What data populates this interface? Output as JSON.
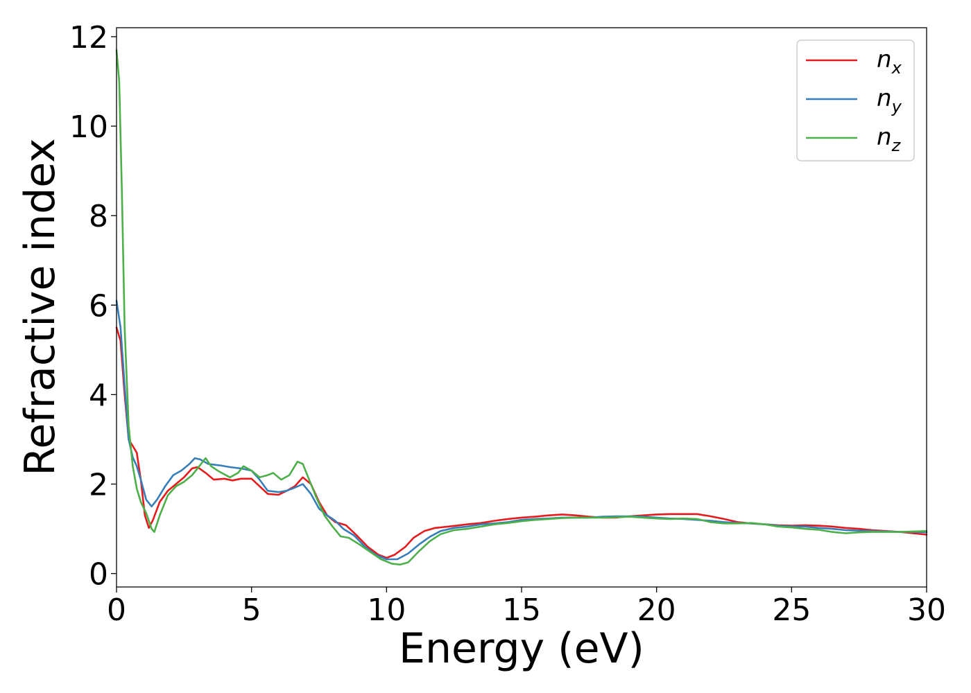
{
  "chart_data": {
    "type": "line",
    "xlabel": "Energy (eV)",
    "ylabel": "Refractive index",
    "xlim": [
      0,
      30
    ],
    "ylim": [
      -0.3,
      12.2
    ],
    "xticks": [
      "0",
      "5",
      "10",
      "15",
      "20",
      "25",
      "30"
    ],
    "yticks": [
      "0",
      "2",
      "4",
      "6",
      "8",
      "10",
      "12"
    ],
    "grid": false,
    "legend_position": "top-right",
    "series": [
      {
        "name": "n",
        "subscript": "x",
        "color": "#e41a1c",
        "points": [
          [
            0,
            5.5
          ],
          [
            0.15,
            5.2
          ],
          [
            0.3,
            4.0
          ],
          [
            0.45,
            3.0
          ],
          [
            0.6,
            2.85
          ],
          [
            0.75,
            2.7
          ],
          [
            0.9,
            2.1
          ],
          [
            1.05,
            1.3
          ],
          [
            1.2,
            1.02
          ],
          [
            1.35,
            1.2
          ],
          [
            1.6,
            1.6
          ],
          [
            1.9,
            1.85
          ],
          [
            2.2,
            2.0
          ],
          [
            2.5,
            2.15
          ],
          [
            2.8,
            2.35
          ],
          [
            3.0,
            2.38
          ],
          [
            3.3,
            2.25
          ],
          [
            3.6,
            2.1
          ],
          [
            4.0,
            2.12
          ],
          [
            4.3,
            2.08
          ],
          [
            4.6,
            2.12
          ],
          [
            5.0,
            2.12
          ],
          [
            5.3,
            1.95
          ],
          [
            5.6,
            1.78
          ],
          [
            6.0,
            1.76
          ],
          [
            6.3,
            1.85
          ],
          [
            6.6,
            1.95
          ],
          [
            6.9,
            2.15
          ],
          [
            7.2,
            2.0
          ],
          [
            7.5,
            1.6
          ],
          [
            7.8,
            1.3
          ],
          [
            8.1,
            1.15
          ],
          [
            8.5,
            1.08
          ],
          [
            8.9,
            0.85
          ],
          [
            9.3,
            0.6
          ],
          [
            9.7,
            0.42
          ],
          [
            10.0,
            0.35
          ],
          [
            10.3,
            0.42
          ],
          [
            10.7,
            0.6
          ],
          [
            11.0,
            0.8
          ],
          [
            11.4,
            0.95
          ],
          [
            11.8,
            1.02
          ],
          [
            12.3,
            1.05
          ],
          [
            13.0,
            1.1
          ],
          [
            13.5,
            1.13
          ],
          [
            14.0,
            1.18
          ],
          [
            14.5,
            1.22
          ],
          [
            15.0,
            1.25
          ],
          [
            15.5,
            1.27
          ],
          [
            16.0,
            1.3
          ],
          [
            16.5,
            1.32
          ],
          [
            17.0,
            1.3
          ],
          [
            17.5,
            1.27
          ],
          [
            18.0,
            1.25
          ],
          [
            18.5,
            1.25
          ],
          [
            19.0,
            1.28
          ],
          [
            19.5,
            1.3
          ],
          [
            20.0,
            1.32
          ],
          [
            20.5,
            1.33
          ],
          [
            21.0,
            1.33
          ],
          [
            21.5,
            1.33
          ],
          [
            22.0,
            1.28
          ],
          [
            22.5,
            1.22
          ],
          [
            23.0,
            1.15
          ],
          [
            23.5,
            1.12
          ],
          [
            24.0,
            1.1
          ],
          [
            24.5,
            1.08
          ],
          [
            25.0,
            1.07
          ],
          [
            25.5,
            1.08
          ],
          [
            26.0,
            1.07
          ],
          [
            26.5,
            1.05
          ],
          [
            27.0,
            1.02
          ],
          [
            27.5,
            1.0
          ],
          [
            28.0,
            0.97
          ],
          [
            28.5,
            0.95
          ],
          [
            29.0,
            0.93
          ],
          [
            29.5,
            0.9
          ],
          [
            30.0,
            0.87
          ]
        ]
      },
      {
        "name": "n",
        "subscript": "y",
        "color": "#377eb8",
        "points": [
          [
            0,
            6.1
          ],
          [
            0.15,
            5.5
          ],
          [
            0.3,
            4.2
          ],
          [
            0.45,
            3.0
          ],
          [
            0.6,
            2.6
          ],
          [
            0.75,
            2.4
          ],
          [
            0.9,
            2.1
          ],
          [
            1.1,
            1.65
          ],
          [
            1.3,
            1.5
          ],
          [
            1.5,
            1.65
          ],
          [
            1.8,
            1.95
          ],
          [
            2.1,
            2.2
          ],
          [
            2.4,
            2.3
          ],
          [
            2.7,
            2.45
          ],
          [
            2.9,
            2.58
          ],
          [
            3.1,
            2.55
          ],
          [
            3.4,
            2.45
          ],
          [
            3.8,
            2.42
          ],
          [
            4.2,
            2.38
          ],
          [
            4.6,
            2.35
          ],
          [
            5.0,
            2.3
          ],
          [
            5.3,
            2.1
          ],
          [
            5.6,
            1.85
          ],
          [
            6.0,
            1.82
          ],
          [
            6.3,
            1.85
          ],
          [
            6.6,
            1.92
          ],
          [
            6.9,
            2.0
          ],
          [
            7.2,
            1.78
          ],
          [
            7.5,
            1.45
          ],
          [
            7.8,
            1.3
          ],
          [
            8.1,
            1.18
          ],
          [
            8.4,
            1.0
          ],
          [
            8.8,
            0.85
          ],
          [
            9.2,
            0.6
          ],
          [
            9.6,
            0.42
          ],
          [
            10.0,
            0.32
          ],
          [
            10.4,
            0.32
          ],
          [
            10.8,
            0.45
          ],
          [
            11.2,
            0.65
          ],
          [
            11.6,
            0.82
          ],
          [
            12.0,
            0.95
          ],
          [
            12.5,
            1.02
          ],
          [
            13.0,
            1.05
          ],
          [
            13.5,
            1.1
          ],
          [
            14.0,
            1.12
          ],
          [
            14.5,
            1.15
          ],
          [
            15.0,
            1.2
          ],
          [
            15.5,
            1.22
          ],
          [
            16.0,
            1.23
          ],
          [
            16.5,
            1.25
          ],
          [
            17.0,
            1.25
          ],
          [
            17.5,
            1.25
          ],
          [
            18.0,
            1.27
          ],
          [
            18.5,
            1.28
          ],
          [
            19.0,
            1.28
          ],
          [
            19.5,
            1.27
          ],
          [
            20.0,
            1.25
          ],
          [
            20.5,
            1.23
          ],
          [
            21.0,
            1.22
          ],
          [
            21.5,
            1.2
          ],
          [
            22.0,
            1.18
          ],
          [
            22.5,
            1.15
          ],
          [
            23.0,
            1.13
          ],
          [
            23.5,
            1.12
          ],
          [
            24.0,
            1.1
          ],
          [
            24.5,
            1.07
          ],
          [
            25.0,
            1.05
          ],
          [
            25.5,
            1.05
          ],
          [
            26.0,
            1.02
          ],
          [
            26.5,
            1.0
          ],
          [
            27.0,
            0.97
          ],
          [
            27.5,
            0.96
          ],
          [
            28.0,
            0.95
          ],
          [
            28.5,
            0.94
          ],
          [
            29.0,
            0.93
          ],
          [
            29.5,
            0.93
          ],
          [
            30.0,
            0.92
          ]
        ]
      },
      {
        "name": "n",
        "subscript": "z",
        "color": "#4daf4a",
        "points": [
          [
            0,
            11.7
          ],
          [
            0.1,
            11.0
          ],
          [
            0.2,
            8.5
          ],
          [
            0.3,
            5.5
          ],
          [
            0.45,
            3.3
          ],
          [
            0.6,
            2.4
          ],
          [
            0.75,
            1.9
          ],
          [
            0.9,
            1.6
          ],
          [
            1.1,
            1.35
          ],
          [
            1.3,
            1.0
          ],
          [
            1.4,
            0.93
          ],
          [
            1.6,
            1.3
          ],
          [
            1.9,
            1.75
          ],
          [
            2.2,
            1.95
          ],
          [
            2.5,
            2.05
          ],
          [
            2.8,
            2.2
          ],
          [
            3.0,
            2.35
          ],
          [
            3.3,
            2.58
          ],
          [
            3.5,
            2.4
          ],
          [
            3.8,
            2.28
          ],
          [
            4.2,
            2.15
          ],
          [
            4.5,
            2.25
          ],
          [
            4.7,
            2.4
          ],
          [
            5.0,
            2.3
          ],
          [
            5.3,
            2.15
          ],
          [
            5.6,
            2.2
          ],
          [
            5.8,
            2.25
          ],
          [
            6.1,
            2.1
          ],
          [
            6.4,
            2.2
          ],
          [
            6.7,
            2.5
          ],
          [
            6.9,
            2.45
          ],
          [
            7.1,
            2.15
          ],
          [
            7.4,
            1.7
          ],
          [
            7.7,
            1.3
          ],
          [
            8.0,
            1.05
          ],
          [
            8.3,
            0.83
          ],
          [
            8.6,
            0.8
          ],
          [
            9.0,
            0.65
          ],
          [
            9.4,
            0.48
          ],
          [
            9.8,
            0.32
          ],
          [
            10.2,
            0.22
          ],
          [
            10.5,
            0.2
          ],
          [
            10.8,
            0.25
          ],
          [
            11.2,
            0.5
          ],
          [
            11.6,
            0.72
          ],
          [
            12.0,
            0.88
          ],
          [
            12.5,
            0.97
          ],
          [
            13.0,
            1.0
          ],
          [
            13.5,
            1.05
          ],
          [
            14.0,
            1.1
          ],
          [
            14.5,
            1.13
          ],
          [
            15.0,
            1.17
          ],
          [
            15.5,
            1.2
          ],
          [
            16.0,
            1.22
          ],
          [
            16.5,
            1.24
          ],
          [
            17.0,
            1.25
          ],
          [
            17.5,
            1.25
          ],
          [
            18.0,
            1.25
          ],
          [
            18.5,
            1.26
          ],
          [
            19.0,
            1.27
          ],
          [
            19.5,
            1.25
          ],
          [
            20.0,
            1.23
          ],
          [
            20.5,
            1.22
          ],
          [
            21.0,
            1.23
          ],
          [
            21.5,
            1.22
          ],
          [
            22.0,
            1.15
          ],
          [
            22.5,
            1.12
          ],
          [
            23.0,
            1.12
          ],
          [
            23.5,
            1.13
          ],
          [
            24.0,
            1.1
          ],
          [
            24.5,
            1.05
          ],
          [
            25.0,
            1.03
          ],
          [
            25.5,
            1.0
          ],
          [
            26.0,
            0.98
          ],
          [
            26.5,
            0.93
          ],
          [
            27.0,
            0.9
          ],
          [
            27.5,
            0.92
          ],
          [
            28.0,
            0.93
          ],
          [
            28.5,
            0.93
          ],
          [
            29.0,
            0.93
          ],
          [
            29.5,
            0.94
          ],
          [
            30.0,
            0.95
          ]
        ]
      }
    ]
  }
}
